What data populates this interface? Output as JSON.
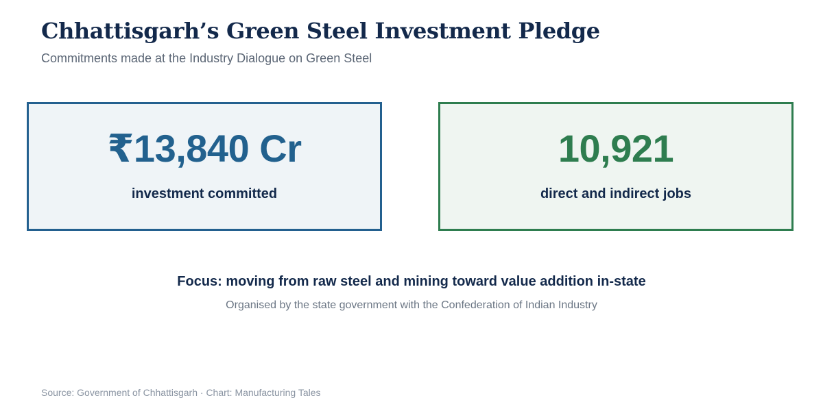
{
  "header": {
    "title": "Chhattisgarh’s Green Steel Investment Pledge",
    "subtitle": "Commitments made at the Industry Dialogue on Green Steel"
  },
  "chart_data": {
    "type": "table",
    "title": "Chhattisgarh’s Green Steel Investment Pledge",
    "subtitle": "Commitments made at the Industry Dialogue on Green Steel",
    "metrics": [
      {
        "value_text": "₹13,840 Cr",
        "value": 13840,
        "unit": "₹ Cr",
        "label": "investment committed"
      },
      {
        "value_text": "10,921",
        "value": 10921,
        "unit": "jobs",
        "label": "direct and indirect jobs"
      }
    ]
  },
  "focus": {
    "text": "Focus: moving from raw steel and mining toward value addition in-state",
    "organiser": "Organised by the state government with the Confederation of Indian Industry"
  },
  "footer": {
    "source": "Source: Government of Chhattisgarh · Chart: Manufacturing Tales"
  },
  "colors": {
    "title": "#13294b",
    "investment_accent": "#23608f",
    "jobs_accent": "#2e7d4f",
    "investment_bg": "#eff4f7",
    "jobs_bg": "#eff5f1"
  }
}
